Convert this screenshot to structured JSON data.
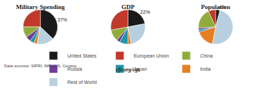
{
  "chart_data": [
    {
      "type": "pie",
      "title": "Military Spending",
      "categories": [
        "United States",
        "European Union",
        "China",
        "Russia",
        "Japan",
        "India",
        "Rest of World"
      ],
      "values": [
        37,
        25,
        10,
        5,
        4,
        3,
        16
      ],
      "value_labels": [
        "37%",
        null,
        null,
        null,
        null,
        null,
        null
      ],
      "colors": [
        "#1a1a1a",
        "#c0392b",
        "#8fac3a",
        "#6a3d9a",
        "#2196a6",
        "#e67e22",
        "#b8cfe0"
      ],
      "legend": "bottom"
    },
    {
      "type": "pie",
      "title": "GDP",
      "categories": [
        "United States",
        "European Union",
        "China",
        "Russia",
        "Japan",
        "India",
        "Rest of World"
      ],
      "values": [
        22,
        28,
        11,
        3,
        8,
        3,
        25
      ],
      "value_labels": [
        "22%",
        null,
        null,
        null,
        null,
        null,
        null
      ],
      "colors": [
        "#1a1a1a",
        "#c0392b",
        "#8fac3a",
        "#6a3d9a",
        "#2196a6",
        "#e67e22",
        "#b8cfe0"
      ],
      "legend": "bottom"
    },
    {
      "type": "pie",
      "title": "Population",
      "categories": [
        "United States",
        "European Union",
        "China",
        "Russia",
        "Japan",
        "India",
        "Rest of World"
      ],
      "values": [
        4,
        7,
        19,
        2,
        2,
        17,
        49
      ],
      "value_labels": [
        "4%",
        null,
        null,
        null,
        null,
        null,
        null
      ],
      "colors": [
        "#1a1a1a",
        "#c0392b",
        "#8fac3a",
        "#6a3d9a",
        "#2196a6",
        "#e67e22",
        "#b8cfe0"
      ],
      "legend": "bottom"
    }
  ],
  "annotations": [
    "Data sources: SIPRI, IMF, U.S. Census",
    "cfr.org/cgs"
  ]
}
